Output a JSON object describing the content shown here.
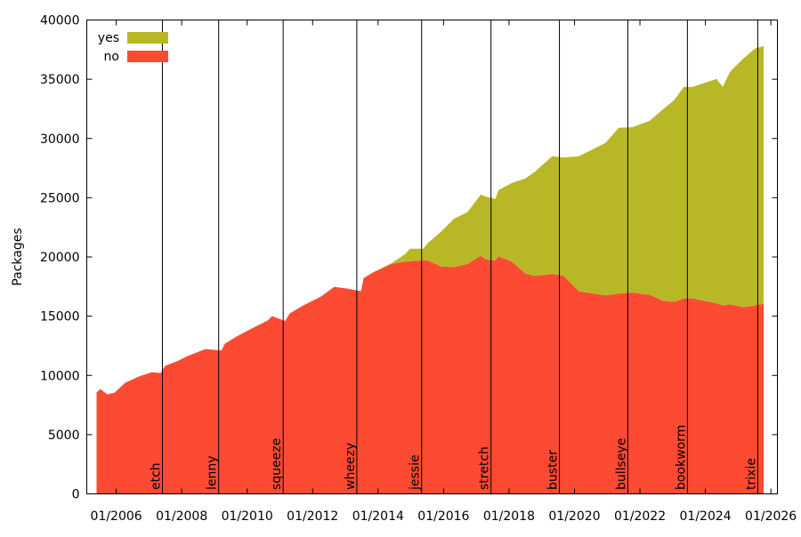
{
  "chart_data": {
    "type": "area",
    "stacked": true,
    "title": "",
    "xlabel": "",
    "ylabel": "Packages",
    "xlim": [
      2005.1,
      2026.2
    ],
    "ylim": [
      0,
      40000
    ],
    "yticks": [
      0,
      5000,
      10000,
      15000,
      20000,
      25000,
      30000,
      35000,
      40000
    ],
    "xticks": [
      {
        "value": 2006,
        "label": "01/2006"
      },
      {
        "value": 2008,
        "label": "01/2008"
      },
      {
        "value": 2010,
        "label": "01/2010"
      },
      {
        "value": 2012,
        "label": "01/2012"
      },
      {
        "value": 2014,
        "label": "01/2014"
      },
      {
        "value": 2016,
        "label": "01/2016"
      },
      {
        "value": 2018,
        "label": "01/2018"
      },
      {
        "value": 2020,
        "label": "01/2020"
      },
      {
        "value": 2022,
        "label": "01/2022"
      },
      {
        "value": 2024,
        "label": "01/2024"
      },
      {
        "value": 2026,
        "label": "01/2026"
      }
    ],
    "grid": false,
    "legend_position": "top-left",
    "x": [
      2005.4,
      2005.51,
      2005.73,
      2005.95,
      2006.27,
      2006.68,
      2007.09,
      2007.36,
      2007.49,
      2007.9,
      2008.17,
      2008.72,
      2009.21,
      2009.32,
      2009.67,
      2010.08,
      2010.62,
      2010.76,
      2011.16,
      2011.3,
      2011.71,
      2012.25,
      2012.66,
      2013.07,
      2013.48,
      2013.56,
      2013.88,
      2014.42,
      2014.83,
      2014.97,
      2015.38,
      2015.51,
      2015.92,
      2016.33,
      2016.73,
      2017.14,
      2017.28,
      2017.58,
      2017.68,
      2018.09,
      2018.5,
      2018.77,
      2019.32,
      2019.67,
      2020.13,
      2020.95,
      2021.35,
      2021.76,
      2022.3,
      2022.71,
      2023.04,
      2023.34,
      2023.61,
      2023.93,
      2024.34,
      2024.53,
      2024.75,
      2025.16,
      2025.51,
      2025.78
    ],
    "series": [
      {
        "name": "no",
        "color": "#fc4a33",
        "values": [
          8550,
          8850,
          8400,
          8550,
          9375,
          9900,
          10275,
          10200,
          10800,
          11250,
          11625,
          12225,
          12100,
          12675,
          13275,
          13875,
          14625,
          15000,
          14600,
          15225,
          15900,
          16650,
          17475,
          17325,
          17100,
          18225,
          18750,
          19425,
          19600,
          19650,
          19700,
          19725,
          19200,
          19150,
          19400,
          20100,
          19800,
          19700,
          20050,
          19600,
          18600,
          18400,
          18550,
          18400,
          17100,
          16750,
          16900,
          17000,
          16800,
          16300,
          16200,
          16500,
          16500,
          16300,
          16100,
          15900,
          16000,
          15750,
          15900,
          16050
        ]
      },
      {
        "name": "yes",
        "color": "#b8b826",
        "values": [
          0,
          0,
          0,
          0,
          0,
          0,
          0,
          0,
          0,
          0,
          0,
          0,
          0,
          0,
          0,
          0,
          0,
          0,
          0,
          0,
          0,
          0,
          0,
          0,
          0,
          0,
          0,
          75,
          650,
          1050,
          1000,
          1425,
          2925,
          4100,
          4375,
          5175,
          5300,
          5200,
          5600,
          6650,
          8025,
          8750,
          9950,
          10000,
          11400,
          12875,
          14000,
          13950,
          14700,
          16175,
          17025,
          17850,
          17850,
          18350,
          18925,
          18450,
          19625,
          21000,
          21675,
          21750
        ]
      }
    ],
    "annotations": [
      {
        "label": "etch",
        "x": 2007.41
      },
      {
        "label": "lenny",
        "x": 2009.13
      },
      {
        "label": "squeeze",
        "x": 2011.1
      },
      {
        "label": "wheezy",
        "x": 2013.35
      },
      {
        "label": "jessie",
        "x": 2015.33
      },
      {
        "label": "stretch",
        "x": 2017.45
      },
      {
        "label": "buster",
        "x": 2019.54
      },
      {
        "label": "bullseye",
        "x": 2021.63
      },
      {
        "label": "bookworm",
        "x": 2023.45
      },
      {
        "label": "trixie",
        "x": 2025.6
      }
    ]
  }
}
